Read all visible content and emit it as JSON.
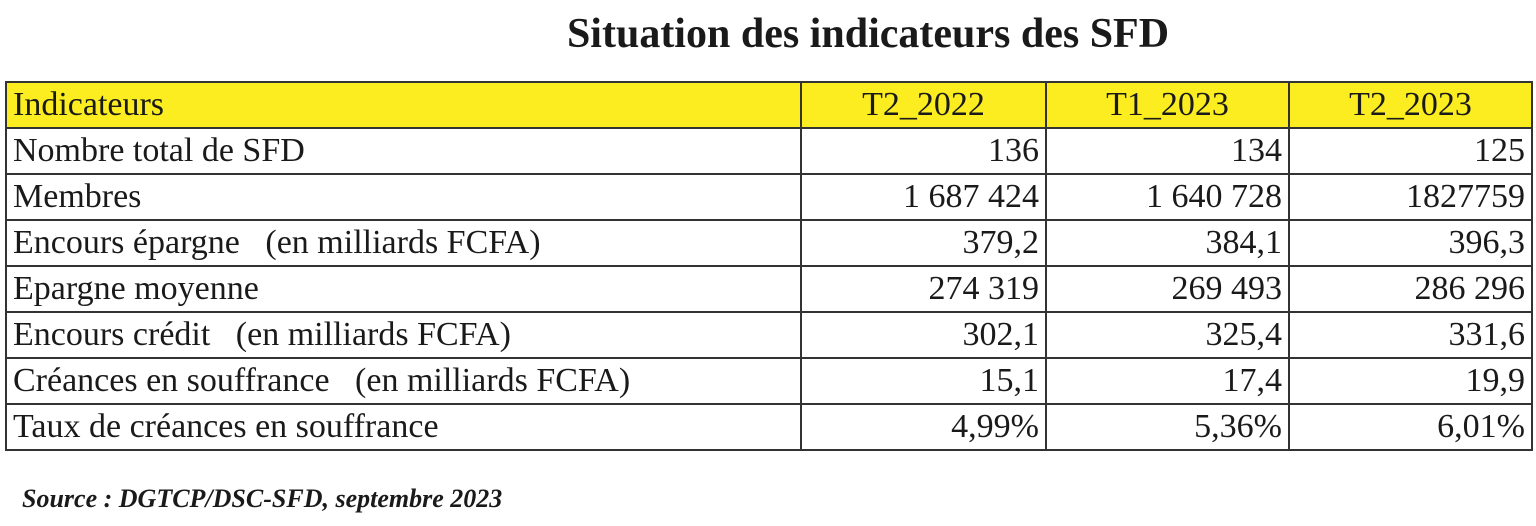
{
  "title": "Situation des indicateurs des SFD",
  "table": {
    "headers": [
      "Indicateurs",
      "T2_2022",
      "T1_2023",
      "T2_2023"
    ],
    "rows": [
      {
        "label": "Nombre total de SFD",
        "values": [
          "136",
          "134",
          "125"
        ]
      },
      {
        "label": "Membres",
        "values": [
          "1 687 424",
          "1 640 728",
          "1827759"
        ]
      },
      {
        "label": "Encours épargne   (en milliards FCFA)",
        "values": [
          "379,2",
          "384,1",
          "396,3"
        ]
      },
      {
        "label": "Epargne moyenne",
        "values": [
          "274 319",
          "269 493",
          "286 296"
        ]
      },
      {
        "label": "Encours crédit   (en milliards FCFA)",
        "values": [
          "302,1",
          "325,4",
          "331,6"
        ]
      },
      {
        "label": "Créances en souffrance   (en milliards FCFA)",
        "values": [
          "15,1",
          "17,4",
          "19,9"
        ]
      },
      {
        "label": "Taux de créances en souffrance",
        "values": [
          "4,99%",
          "5,36%",
          "6,01%"
        ]
      }
    ]
  },
  "source": "Source : DGTCP/DSC-SFD, septembre 2023",
  "colors": {
    "header_bg": "#fbed1f",
    "border": "#333333"
  }
}
